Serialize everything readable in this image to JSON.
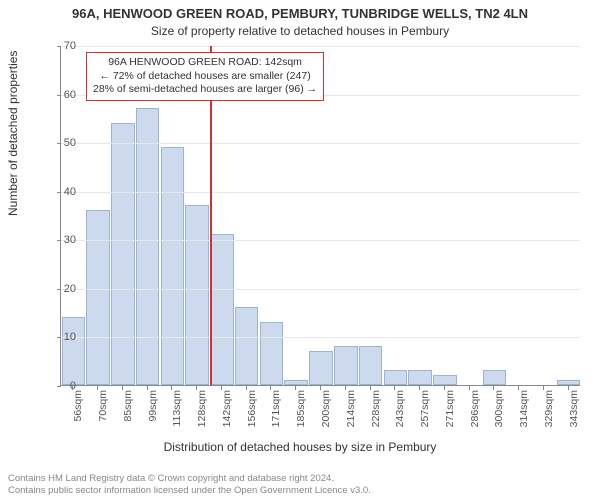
{
  "title_main": "96A, HENWOOD GREEN ROAD, PEMBURY, TUNBRIDGE WELLS, TN2 4LN",
  "title_sub": "Size of property relative to detached houses in Pembury",
  "ylabel": "Number of detached properties",
  "xlabel": "Distribution of detached houses by size in Pembury",
  "chart": {
    "type": "histogram",
    "ylim": [
      0,
      70
    ],
    "ytick_step": 10,
    "bar_fill": "#cdd9ed",
    "bar_stroke": "#9bb3d9",
    "grid_color": "#e8e8e8",
    "axis_color": "#888888",
    "categories": [
      "56sqm",
      "70sqm",
      "85sqm",
      "99sqm",
      "113sqm",
      "128sqm",
      "142sqm",
      "156sqm",
      "171sqm",
      "185sqm",
      "200sqm",
      "214sqm",
      "228sqm",
      "243sqm",
      "257sqm",
      "271sqm",
      "286sqm",
      "300sqm",
      "314sqm",
      "329sqm",
      "343sqm"
    ],
    "values": [
      14,
      36,
      54,
      57,
      49,
      37,
      31,
      16,
      13,
      1,
      7,
      8,
      8,
      3,
      3,
      2,
      0,
      3,
      0,
      0,
      1
    ],
    "marker": {
      "index": 6,
      "color": "#cc3333"
    }
  },
  "annotation": {
    "line1": "96A HENWOOD GREEN ROAD: 142sqm",
    "line2": "← 72% of detached houses are smaller (247)",
    "line3": "28% of semi-detached houses are larger (96) →"
  },
  "attribution": {
    "line1": "Contains HM Land Registry data © Crown copyright and database right 2024.",
    "line2": "Contains public sector information licensed under the Open Government Licence v3.0."
  },
  "fonts": {
    "title_main_size": 13,
    "title_sub_size": 12,
    "axis_label_size": 12,
    "tick_size": 11,
    "annotation_size": 10.5,
    "attribution_size": 9.5
  },
  "colors": {
    "text": "#333333",
    "tick_text": "#555555",
    "attribution_text": "#888888",
    "background": "#ffffff"
  }
}
